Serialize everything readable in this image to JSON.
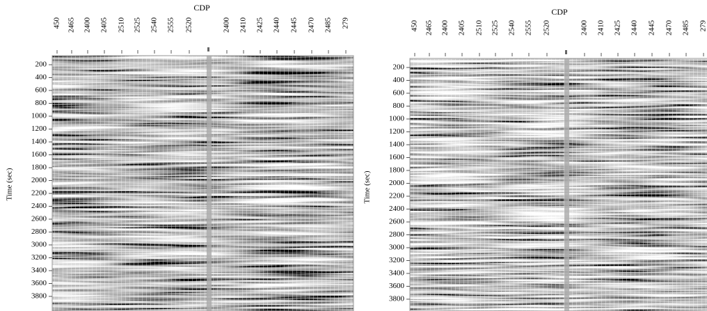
{
  "panels": [
    {
      "title": "CDP",
      "y_label": "Time (sec)",
      "x_ticks": [
        "450",
        "2465",
        "2400",
        "2405",
        "2510",
        "2525",
        "2540",
        "2555",
        "2520",
        "2400",
        "2410",
        "2425",
        "2440",
        "2445",
        "2470",
        "2485",
        "279"
      ],
      "y_ticks": [
        200,
        400,
        600,
        800,
        1000,
        1200,
        1400,
        1600,
        1800,
        2000,
        2200,
        2400,
        2600,
        2800,
        3000,
        3200,
        3400,
        3600,
        3800
      ]
    },
    {
      "title": "CDP",
      "y_label": "Time (sec)",
      "x_ticks": [
        "450",
        "2465",
        "2400",
        "2405",
        "2510",
        "2525",
        "2540",
        "2555",
        "2520",
        "2400",
        "2410",
        "2425",
        "2440",
        "2445",
        "2470",
        "2485",
        "279"
      ],
      "y_ticks": [
        200,
        400,
        600,
        800,
        1000,
        1200,
        1400,
        1600,
        1800,
        2000,
        2200,
        2400,
        2600,
        2800,
        3000,
        3200,
        3400,
        3600,
        3800
      ]
    }
  ]
}
